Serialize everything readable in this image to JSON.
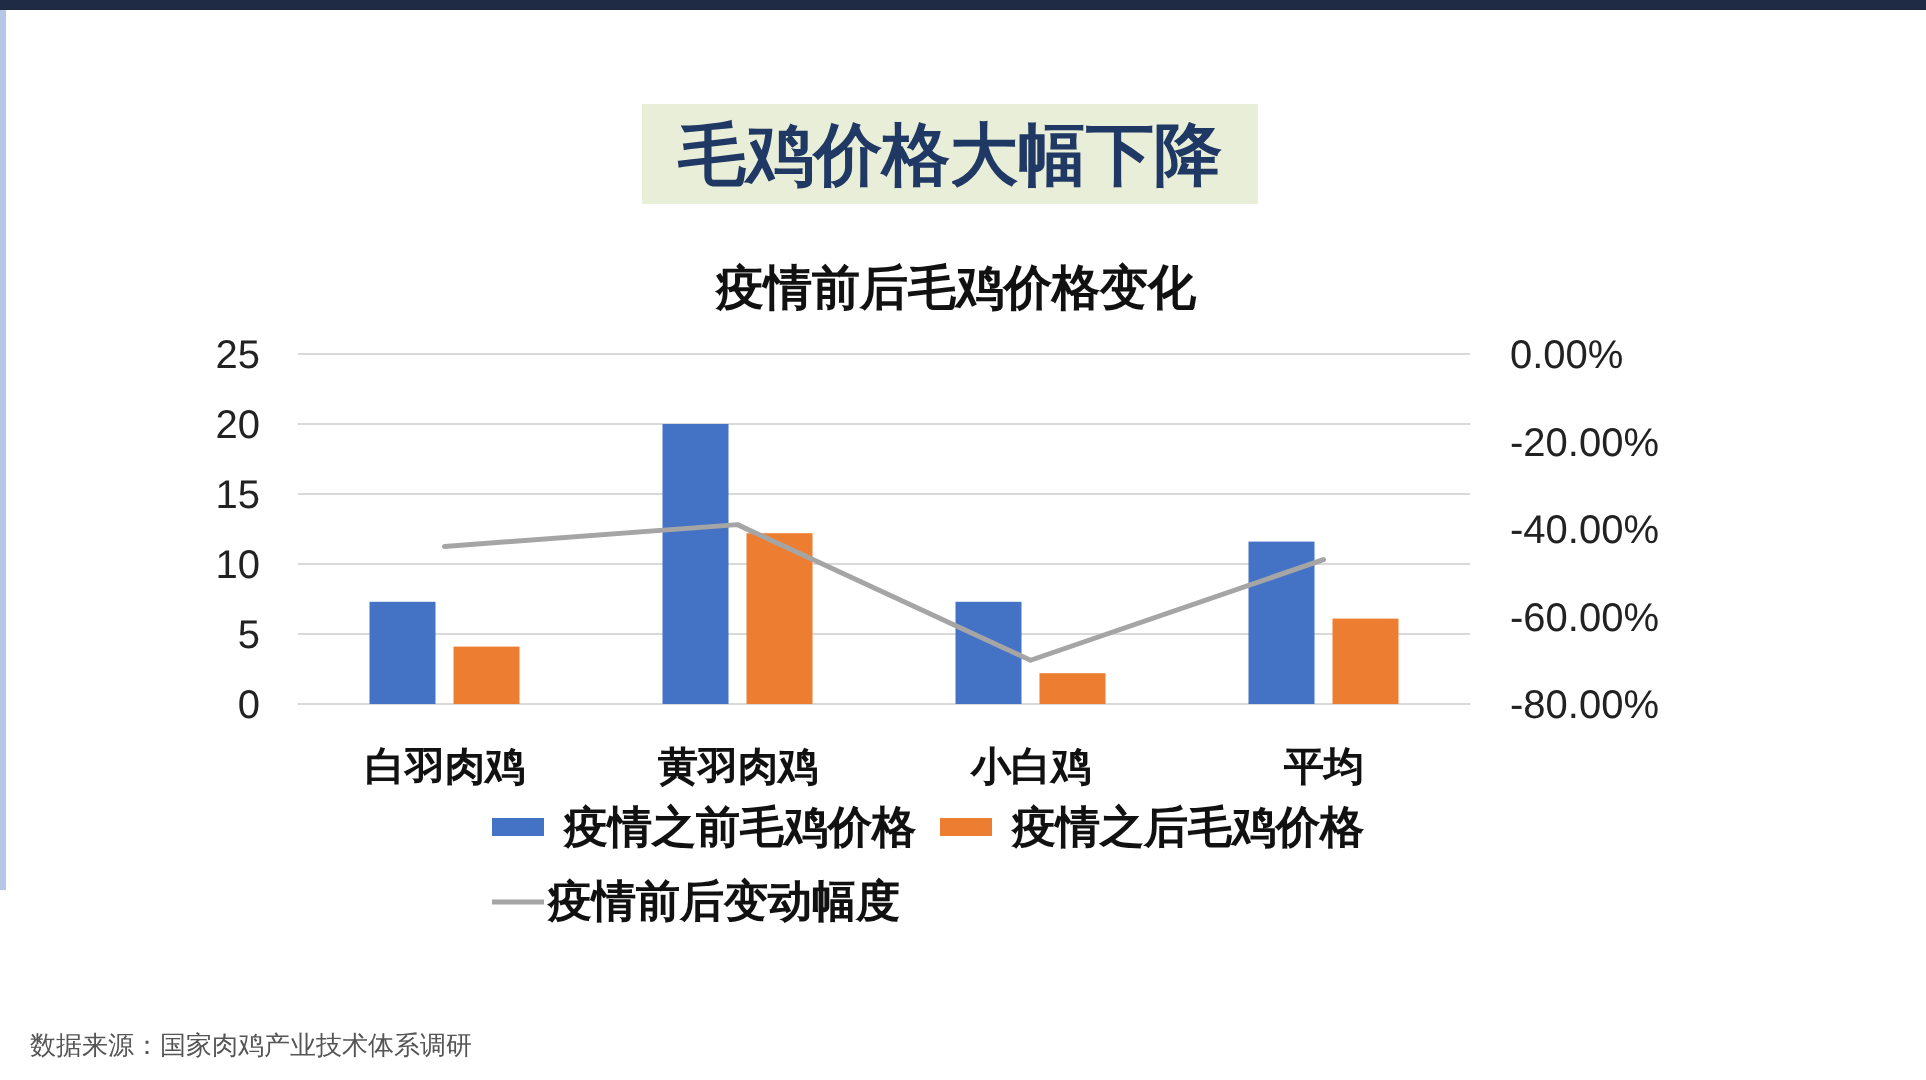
{
  "chart_data": {
    "type": "bar",
    "title": "毛鸡价格大幅下降",
    "subtitle": "疫情前后毛鸡价格变化",
    "categories": [
      "白羽肉鸡",
      "黄羽肉鸡",
      "小白鸡",
      "平均"
    ],
    "series": [
      {
        "name": "疫情之前毛鸡价格",
        "color": "#4472c4",
        "values": [
          7.3,
          20,
          7.3,
          11.6
        ]
      },
      {
        "name": "疫情之后毛鸡价格",
        "color": "#ed7d31",
        "values": [
          4.1,
          12.2,
          2.2,
          6.1
        ]
      },
      {
        "name": "疫情前后变动幅度",
        "type": "line",
        "axis": "y2",
        "color": "#a5a5a5",
        "values": [
          -44,
          -39,
          -70,
          -47
        ]
      }
    ],
    "ylim": [
      0,
      25
    ],
    "yticks": [
      0,
      5,
      10,
      15,
      20,
      25
    ],
    "y2lim": [
      -80,
      0
    ],
    "y2ticks": [
      {
        "value": 0,
        "label": "0.00%"
      },
      {
        "value": -20,
        "label": "-20.00%"
      },
      {
        "value": -40,
        "label": "-40.00%"
      },
      {
        "value": -60,
        "label": "-60.00%"
      },
      {
        "value": -80,
        "label": "-80.00%"
      }
    ],
    "grid": "y",
    "legend": "bottom",
    "annotations": [
      "数据来源：国家肉鸡产业技术体系调研"
    ]
  }
}
